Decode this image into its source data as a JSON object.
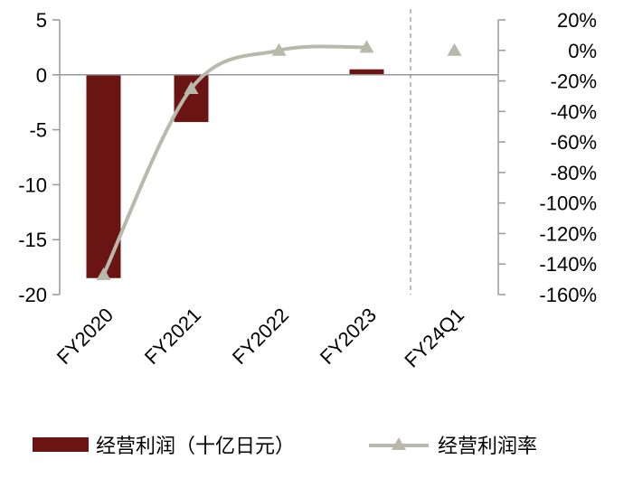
{
  "chart_data": {
    "type": "bar",
    "categories": [
      "FY2020",
      "FY2021",
      "FY2022",
      "FY2023",
      "FY24Q1"
    ],
    "series": [
      {
        "name": "经营利润（十亿日元）",
        "type": "bar",
        "axis": "left",
        "values": [
          -18.5,
          -4.3,
          null,
          0.5,
          null
        ],
        "color": "#6b1414"
      },
      {
        "name": "经营利润率",
        "type": "line",
        "axis": "right",
        "marker": "triangle",
        "values": [
          -147,
          -25,
          0,
          2,
          0
        ],
        "color": "#b9b9ab"
      }
    ],
    "y_left": {
      "ylim": [
        -20,
        5
      ],
      "ticks": [
        "5",
        "0",
        "-5",
        "-10",
        "-15",
        "-20"
      ],
      "tick_values": [
        5,
        0,
        -5,
        -10,
        -15,
        -20
      ]
    },
    "y_right": {
      "ylim": [
        -160,
        20
      ],
      "ticks": [
        "20%",
        "0%",
        "-20%",
        "-40%",
        "-60%",
        "-80%",
        "-100%",
        "-120%",
        "-140%",
        "-160%"
      ],
      "tick_values": [
        20,
        0,
        -20,
        -40,
        -60,
        -80,
        -100,
        -120,
        -140,
        -160
      ]
    },
    "grid": false,
    "legend": "bottom",
    "separator_after_category": "FY2023"
  }
}
